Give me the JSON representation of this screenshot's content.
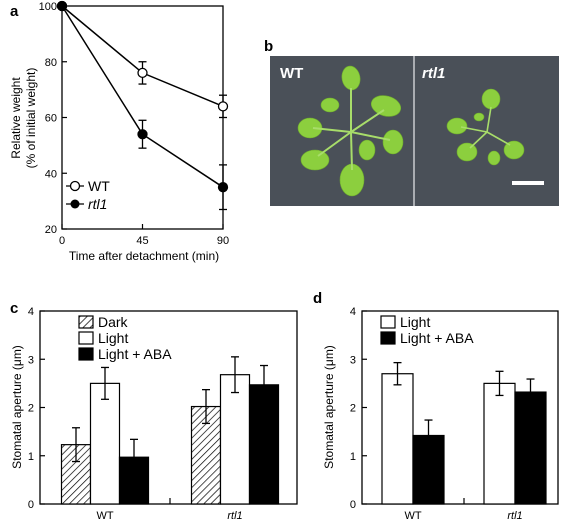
{
  "panel_labels": {
    "a": "a",
    "b": "b",
    "c": "c",
    "d": "d"
  },
  "photo": {
    "left_label": "WT",
    "right_label": "rtl1"
  },
  "colors": {
    "wt_marker": "#ffffff",
    "rtl1_marker": "#000000",
    "light_bar": "#ffffff",
    "aba_bar": "#000000",
    "photo_bg": "#4a5058",
    "leaf": "#8ccf3e"
  },
  "chart_data": [
    {
      "id": "a",
      "type": "line",
      "xlabel": "Time after detachment (min)",
      "ylabel_line1": "Relative weight",
      "ylabel_line2": "(% of initial weight)",
      "x": [
        0,
        45,
        90
      ],
      "x_ticks": [
        "0",
        "45",
        "90"
      ],
      "y_ticks": [
        "20",
        "40",
        "60",
        "80",
        "100"
      ],
      "xlim": [
        0,
        90
      ],
      "ylim": [
        20,
        100
      ],
      "legend_position": "bottom-left",
      "series": [
        {
          "name": "WT",
          "values": [
            100,
            76,
            64
          ],
          "errors": [
            0,
            4,
            4
          ],
          "marker": "open-circle"
        },
        {
          "name": "rtl1",
          "values": [
            100,
            54,
            35
          ],
          "errors": [
            0,
            5,
            8
          ],
          "marker": "filled-circle"
        }
      ]
    },
    {
      "id": "c",
      "type": "bar",
      "ylabel": "Stomatal aperture (μm)",
      "categories": [
        "WT",
        "rtl1"
      ],
      "y_ticks": [
        "0",
        "1",
        "2",
        "3",
        "4"
      ],
      "ylim": [
        0,
        4
      ],
      "legend_position": "top-left",
      "series": [
        {
          "name": "Dark",
          "values": [
            1.23,
            2.02
          ],
          "errors": [
            0.35,
            0.35
          ],
          "fill": "hatch"
        },
        {
          "name": "Light",
          "values": [
            2.5,
            2.68
          ],
          "errors": [
            0.33,
            0.37
          ],
          "fill": "white"
        },
        {
          "name": "Light + ABA",
          "values": [
            0.97,
            2.47
          ],
          "errors": [
            0.37,
            0.4
          ],
          "fill": "black"
        }
      ]
    },
    {
      "id": "d",
      "type": "bar",
      "ylabel": "Stomatal aperture (μm)",
      "categories": [
        "WT",
        "rtl1"
      ],
      "y_ticks": [
        "0",
        "1",
        "2",
        "3",
        "4"
      ],
      "ylim": [
        0,
        4
      ],
      "legend_position": "top-left",
      "series": [
        {
          "name": "Light",
          "values": [
            2.7,
            2.5
          ],
          "errors": [
            0.23,
            0.25
          ],
          "fill": "white"
        },
        {
          "name": "Light + ABA",
          "values": [
            1.42,
            2.32
          ],
          "errors": [
            0.32,
            0.27
          ],
          "fill": "black"
        }
      ]
    }
  ]
}
